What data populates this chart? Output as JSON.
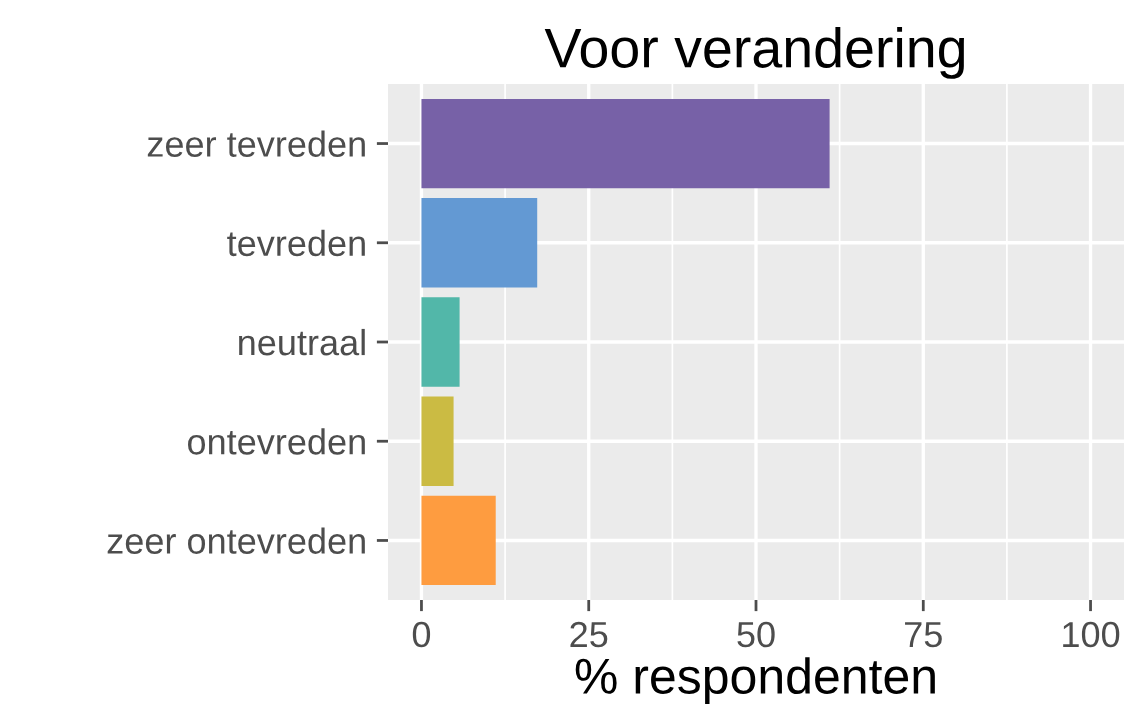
{
  "chart_data": {
    "type": "bar",
    "orientation": "horizontal",
    "title": "Voor verandering",
    "xlabel": "% respondenten",
    "categories": [
      "zeer tevreden",
      "tevreden",
      "neutraal",
      "ontevreden",
      "zeer ontevreden"
    ],
    "values": [
      61.0,
      17.3,
      5.7,
      4.8,
      11.1
    ],
    "colors": [
      "#7761a7",
      "#6399d3",
      "#52b7a9",
      "#cbbb43",
      "#fe9c40"
    ],
    "xlim": [
      -5,
      105
    ],
    "xticks": [
      0,
      25,
      50,
      75,
      100
    ],
    "grid": true,
    "legend": false
  }
}
